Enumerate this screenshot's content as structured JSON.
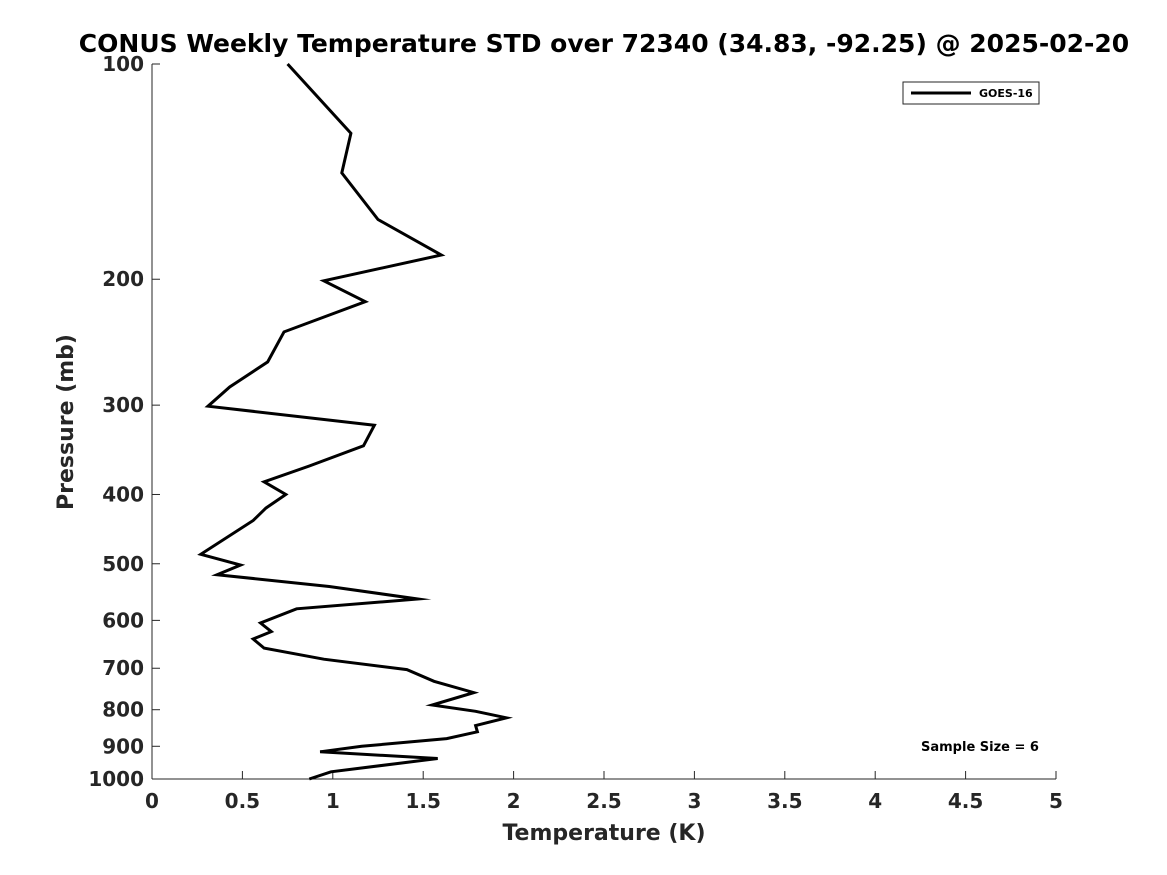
{
  "chart_data": {
    "type": "line",
    "title": "CONUS Weekly Temperature STD over 72340 (34.83, -92.25) @ 2025-02-20",
    "xlabel": "Temperature (K)",
    "ylabel": "Pressure (mb)",
    "xlim": [
      0,
      5
    ],
    "ylim": [
      100,
      1000
    ],
    "y_scale": "log",
    "y_reversed": true,
    "x_ticks": [
      "0",
      "0.5",
      "1",
      "1.5",
      "2",
      "2.5",
      "3",
      "3.5",
      "4",
      "4.5",
      "5"
    ],
    "y_ticks": [
      "100",
      "200",
      "300",
      "400",
      "500",
      "600",
      "700",
      "800",
      "900",
      "1000"
    ],
    "grid": false,
    "legend_position": "top-right",
    "series": [
      {
        "name": "GOES-16",
        "color": "#000000",
        "points": [
          [
            0.75,
            100
          ],
          [
            1.1,
            125
          ],
          [
            1.05,
            142
          ],
          [
            1.25,
            165
          ],
          [
            1.6,
            185
          ],
          [
            0.95,
            201
          ],
          [
            1.18,
            215
          ],
          [
            0.73,
            237
          ],
          [
            0.64,
            261
          ],
          [
            0.43,
            283
          ],
          [
            0.31,
            301
          ],
          [
            1.23,
            320
          ],
          [
            1.17,
            342
          ],
          [
            0.87,
            365
          ],
          [
            0.62,
            384
          ],
          [
            0.74,
            400
          ],
          [
            0.63,
            418
          ],
          [
            0.56,
            435
          ],
          [
            0.27,
            485
          ],
          [
            0.49,
            502
          ],
          [
            0.36,
            518
          ],
          [
            0.98,
            538
          ],
          [
            1.47,
            560
          ],
          [
            0.8,
            578
          ],
          [
            0.6,
            605
          ],
          [
            0.66,
            622
          ],
          [
            0.56,
            637
          ],
          [
            0.62,
            656
          ],
          [
            0.95,
            680
          ],
          [
            1.41,
            703
          ],
          [
            1.56,
            730
          ],
          [
            1.78,
            757
          ],
          [
            1.55,
            788
          ],
          [
            1.79,
            804
          ],
          [
            1.96,
            821
          ],
          [
            1.79,
            842
          ],
          [
            1.8,
            859
          ],
          [
            1.63,
            878
          ],
          [
            1.16,
            900
          ],
          [
            0.93,
            916
          ],
          [
            1.58,
            936
          ],
          [
            0.99,
            977
          ],
          [
            0.87,
            1000
          ]
        ]
      }
    ],
    "annotations": [
      "Sample Size = 6"
    ]
  }
}
